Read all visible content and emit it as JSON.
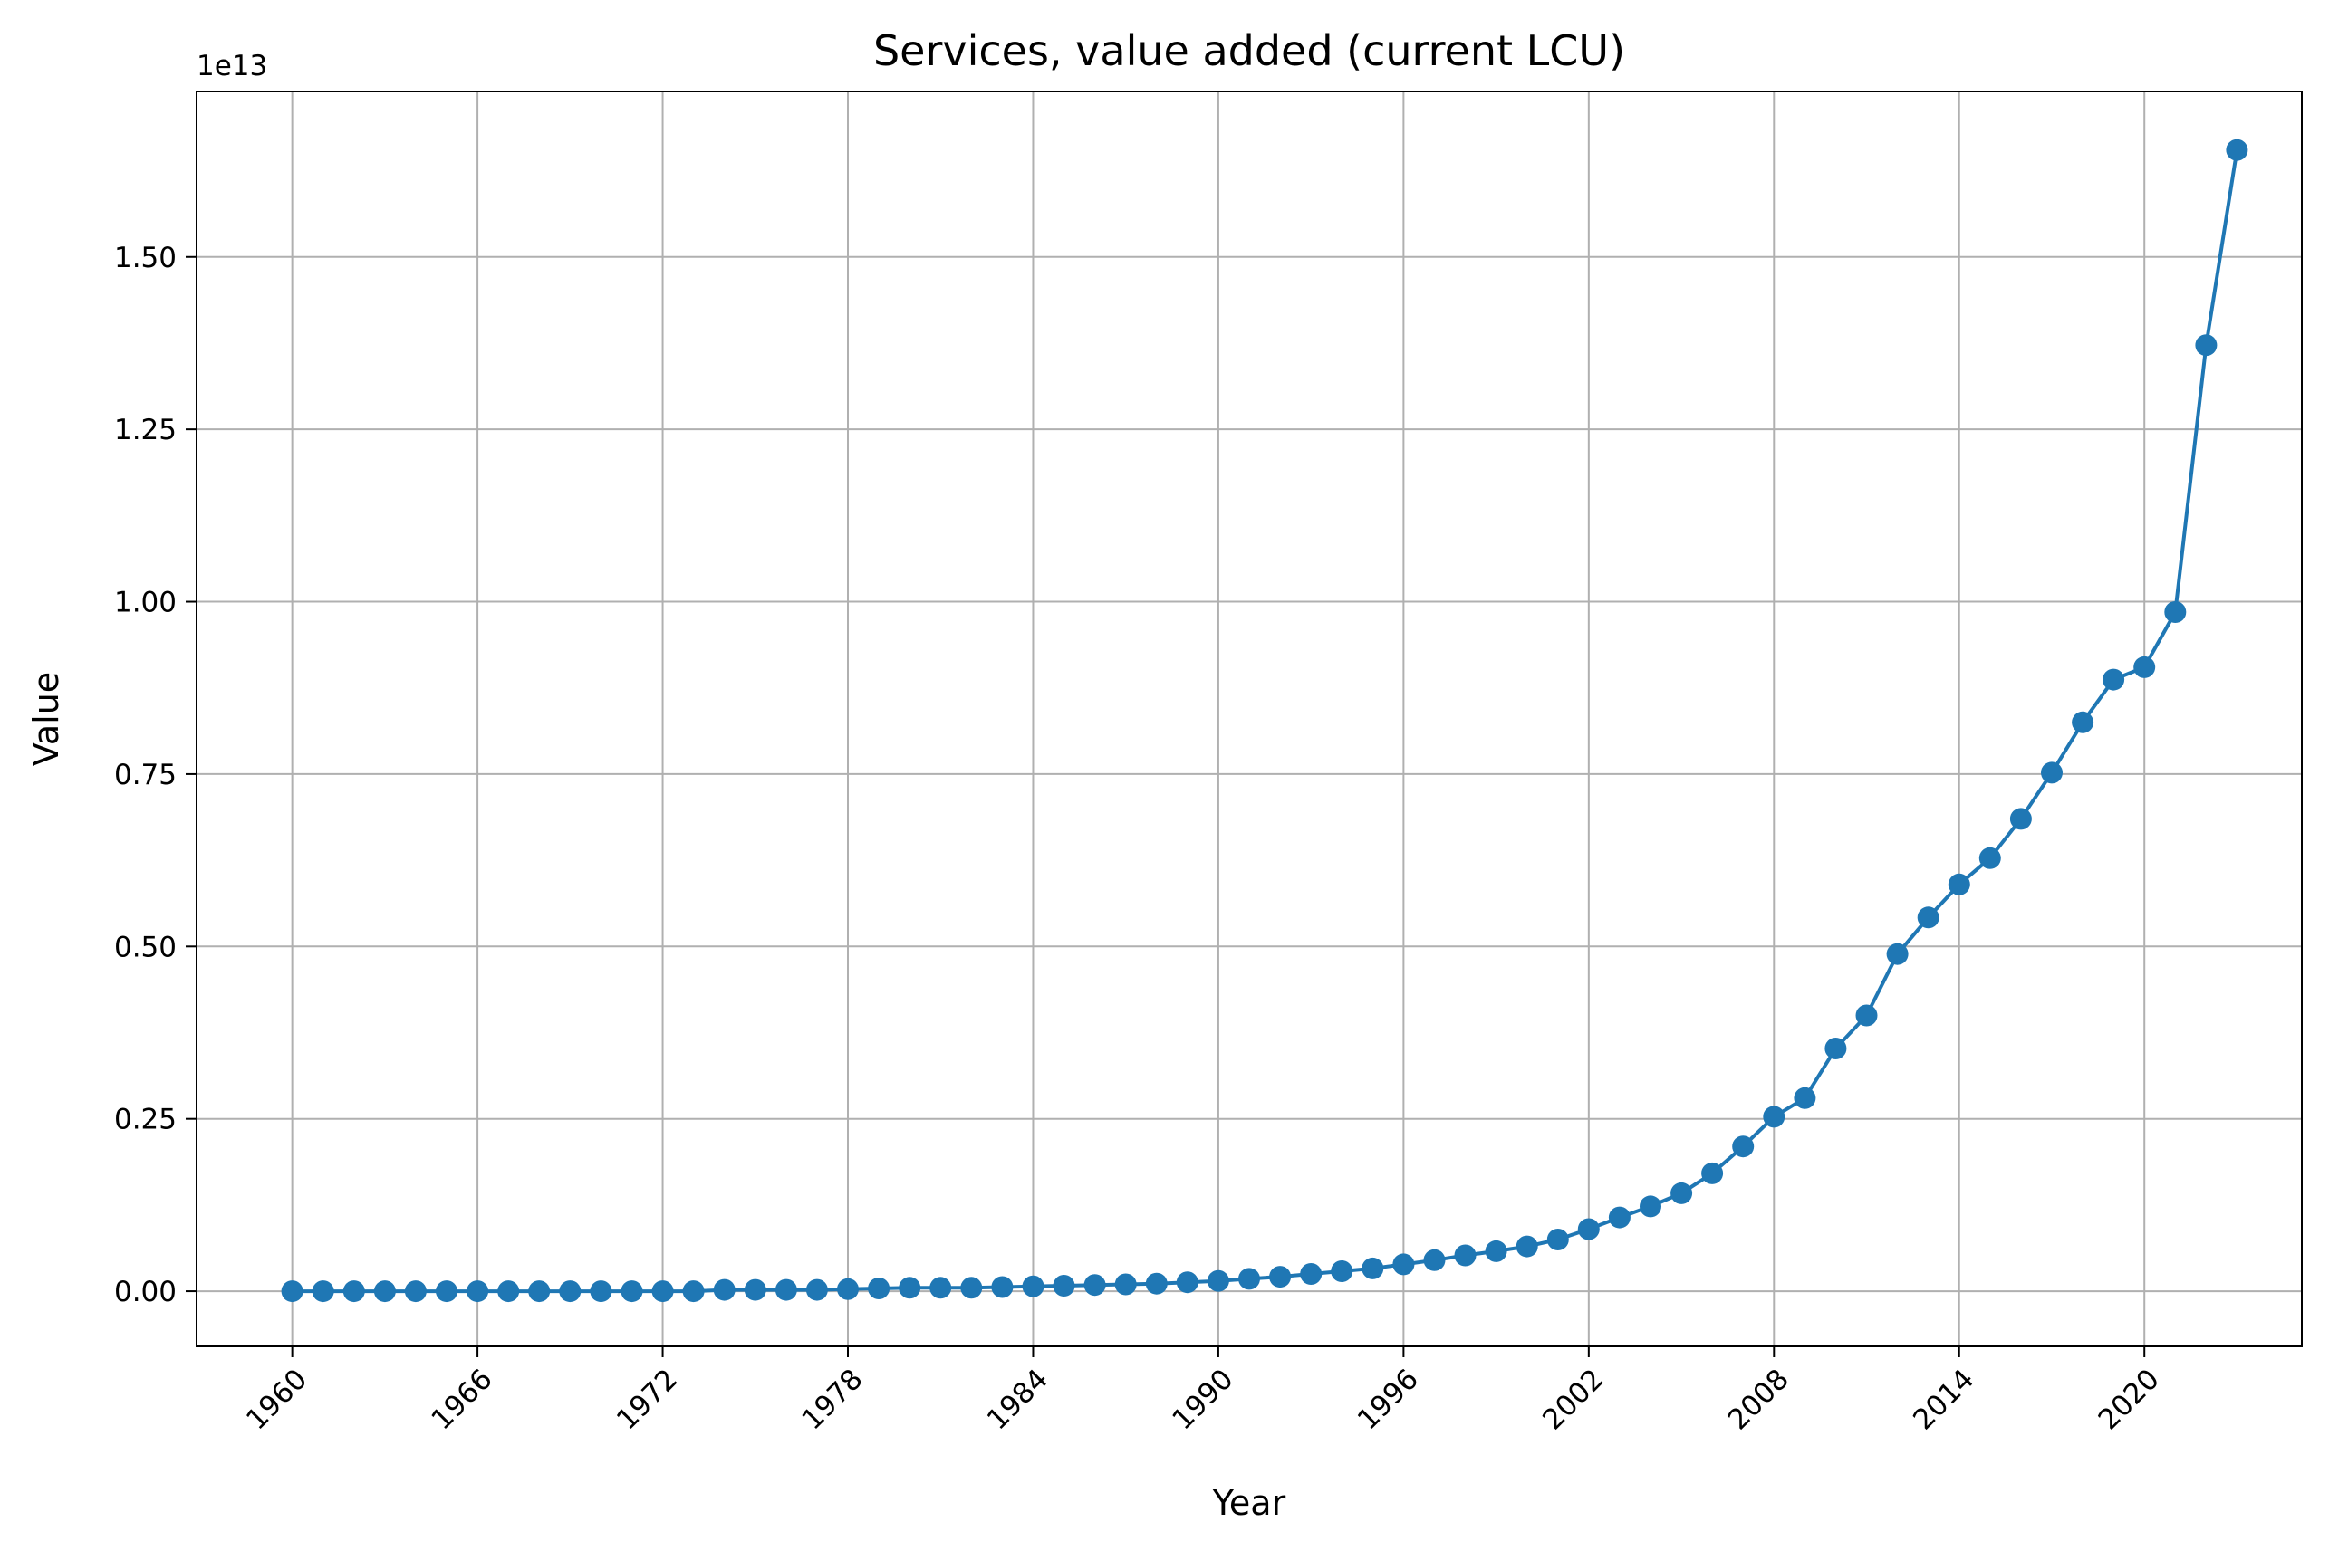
{
  "chart_data": {
    "type": "line",
    "title": "Services, value added (current LCU)",
    "xlabel": "Year",
    "ylabel": "Value",
    "y_offset_label": "1e13",
    "y_scale": 10000000000000,
    "xlim": [
      1956.9,
      2025.1
    ],
    "ylim": [
      -0.08,
      1.74
    ],
    "x_ticks": [
      1960,
      1966,
      1972,
      1978,
      1984,
      1990,
      1996,
      2002,
      2008,
      2014,
      2020
    ],
    "x_tick_labels": [
      "1960",
      "1966",
      "1972",
      "1978",
      "1984",
      "1990",
      "1996",
      "2002",
      "2008",
      "2014",
      "2020"
    ],
    "y_ticks": [
      0.0,
      0.25,
      0.5,
      0.75,
      1.0,
      1.25,
      1.5
    ],
    "y_tick_labels": [
      "0.00",
      "0.25",
      "0.50",
      "0.75",
      "1.00",
      "1.25",
      "1.50"
    ],
    "grid": true,
    "legend": "none",
    "colors": {
      "series": "#1f77b4"
    },
    "series": [
      {
        "x": [
          1960,
          1961,
          1962,
          1963,
          1964,
          1965,
          1966,
          1967,
          1968,
          1969,
          1970,
          1971,
          1972,
          1973,
          1974,
          1975,
          1976,
          1977,
          1978,
          1979,
          1980,
          1981,
          1982,
          1983,
          1984,
          1985,
          1986,
          1987,
          1988,
          1989,
          1990,
          1991,
          1992,
          1993,
          1994,
          1995,
          1996,
          1997,
          1998,
          1999,
          2000,
          2001,
          2002,
          2003,
          2004,
          2005,
          2006,
          2007,
          2008,
          2009,
          2010,
          2011,
          2012,
          2013,
          2014,
          2015,
          2016,
          2017,
          2018,
          2019,
          2020,
          2021,
          2022,
          2023
        ],
        "values": [
          0.0,
          0.0,
          0.0,
          0.0,
          0.0,
          0.0,
          0.0,
          0.0,
          0.0,
          0.0,
          0.0,
          0.0,
          0.0,
          0.0,
          0.002,
          0.002,
          0.002,
          0.002,
          0.003,
          0.004,
          0.005,
          0.005,
          0.005,
          0.006,
          0.007,
          0.008,
          0.009,
          0.01,
          0.011,
          0.013,
          0.015,
          0.018,
          0.021,
          0.025,
          0.029,
          0.033,
          0.039,
          0.045,
          0.052,
          0.058,
          0.065,
          0.075,
          0.09,
          0.107,
          0.123,
          0.142,
          0.171,
          0.21,
          0.253,
          0.28,
          0.352,
          0.4,
          0.489,
          0.542,
          0.59,
          0.628,
          0.685,
          0.752,
          0.825,
          0.887,
          0.905,
          0.985,
          1.372,
          1.655
        ]
      }
    ]
  }
}
